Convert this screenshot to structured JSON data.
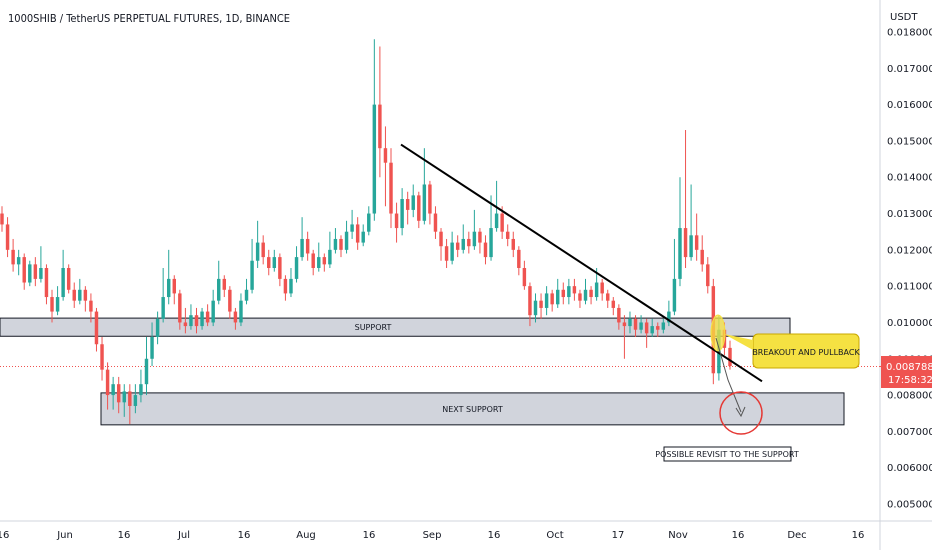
{
  "header": {
    "title": "1000SHIB / TetherUS PERPETUAL FUTURES, 1D, BINANCE"
  },
  "chart_data": {
    "type": "candlestick",
    "currency_label": "USDT",
    "ylim": [
      0.0045,
      0.0183
    ],
    "y_ticks": [
      "0.018000",
      "0.017000",
      "0.016000",
      "0.015000",
      "0.014000",
      "0.013000",
      "0.012000",
      "0.011000",
      "0.010000",
      "0.009000",
      "0.008000",
      "0.007000",
      "0.006000",
      "0.005000"
    ],
    "x_ticks": [
      "16",
      "Jun",
      "16",
      "Jul",
      "16",
      "Aug",
      "16",
      "Sep",
      "16",
      "Oct",
      "17",
      "Nov",
      "16",
      "Dec",
      "16"
    ],
    "last_price": "0.008788",
    "countdown": "17:58:32",
    "colors": {
      "up": "#26a69a",
      "down": "#ef5350",
      "zone_fill": "#d1d4dc",
      "zone_border": "#131722",
      "trendline": "#000000",
      "highlight": "#f5e142",
      "circle": "#e53935",
      "price_line": "#ef5350"
    },
    "zones": [
      {
        "label": "SUPPORT",
        "from": 0.00962,
        "to": 0.01012
      },
      {
        "label": "NEXT SUPPORT",
        "from": 0.00718,
        "to": 0.00806
      }
    ],
    "trendline": {
      "start": 0.0149,
      "end": 0.00838
    },
    "annotations": {
      "callout": "BREAKOUT AND PULLBACK",
      "note": "POSSIBLE REVISIT TO THE SUPPORT"
    },
    "candles": [
      [
        0.013,
        0.0127,
        0.0132,
        0.0125
      ],
      [
        0.0127,
        0.012,
        0.0129,
        0.0118
      ],
      [
        0.012,
        0.0116,
        0.0123,
        0.0114
      ],
      [
        0.0116,
        0.0118,
        0.012,
        0.0113
      ],
      [
        0.0118,
        0.0111,
        0.0119,
        0.0109
      ],
      [
        0.0111,
        0.0116,
        0.0117,
        0.011
      ],
      [
        0.0116,
        0.0112,
        0.0118,
        0.011
      ],
      [
        0.0112,
        0.0115,
        0.0121,
        0.0111
      ],
      [
        0.0115,
        0.0107,
        0.0116,
        0.0105
      ],
      [
        0.0107,
        0.0103,
        0.0109,
        0.01
      ],
      [
        0.0103,
        0.0107,
        0.011,
        0.0102
      ],
      [
        0.0107,
        0.0115,
        0.012,
        0.0106
      ],
      [
        0.0115,
        0.0109,
        0.0116,
        0.0108
      ],
      [
        0.0109,
        0.0106,
        0.0111,
        0.0104
      ],
      [
        0.0106,
        0.0109,
        0.0112,
        0.0105
      ],
      [
        0.0109,
        0.0106,
        0.011,
        0.0103
      ],
      [
        0.0106,
        0.0103,
        0.0108,
        0.01
      ],
      [
        0.0103,
        0.0094,
        0.0104,
        0.0092
      ],
      [
        0.0094,
        0.0087,
        0.0096,
        0.0084
      ],
      [
        0.0087,
        0.008,
        0.0089,
        0.0076
      ],
      [
        0.008,
        0.0083,
        0.0085,
        0.0076
      ],
      [
        0.0083,
        0.0078,
        0.0085,
        0.0075
      ],
      [
        0.0078,
        0.0081,
        0.0083,
        0.0074
      ],
      [
        0.0081,
        0.0077,
        0.0083,
        0.0072
      ],
      [
        0.0077,
        0.008,
        0.0083,
        0.0075
      ],
      [
        0.008,
        0.0083,
        0.0087,
        0.0078
      ],
      [
        0.0083,
        0.009,
        0.0096,
        0.008
      ],
      [
        0.009,
        0.0096,
        0.01,
        0.0088
      ],
      [
        0.0096,
        0.0101,
        0.0103,
        0.0094
      ],
      [
        0.0101,
        0.0107,
        0.0115,
        0.01
      ],
      [
        0.0107,
        0.0112,
        0.012,
        0.0105
      ],
      [
        0.0112,
        0.0108,
        0.0113,
        0.0105
      ],
      [
        0.0108,
        0.01,
        0.0109,
        0.0098
      ],
      [
        0.01,
        0.0099,
        0.0104,
        0.0097
      ],
      [
        0.0099,
        0.0102,
        0.0105,
        0.0098
      ],
      [
        0.0102,
        0.0099,
        0.0104,
        0.0097
      ],
      [
        0.0099,
        0.0103,
        0.0104,
        0.0098
      ],
      [
        0.0103,
        0.01,
        0.0105,
        0.0099
      ],
      [
        0.01,
        0.0106,
        0.0109,
        0.0099
      ],
      [
        0.0106,
        0.0112,
        0.0117,
        0.0105
      ],
      [
        0.0112,
        0.0109,
        0.0113,
        0.0107
      ],
      [
        0.0109,
        0.0103,
        0.011,
        0.0101
      ],
      [
        0.0103,
        0.01,
        0.0104,
        0.0098
      ],
      [
        0.01,
        0.0106,
        0.0108,
        0.0099
      ],
      [
        0.0106,
        0.0109,
        0.0112,
        0.0105
      ],
      [
        0.0109,
        0.0117,
        0.0123,
        0.0108
      ],
      [
        0.0117,
        0.0122,
        0.0128,
        0.0115
      ],
      [
        0.0122,
        0.0118,
        0.0124,
        0.0116
      ],
      [
        0.0118,
        0.0115,
        0.012,
        0.0113
      ],
      [
        0.0115,
        0.0118,
        0.012,
        0.0114
      ],
      [
        0.0118,
        0.0112,
        0.0119,
        0.011
      ],
      [
        0.0112,
        0.0108,
        0.0113,
        0.0106
      ],
      [
        0.0108,
        0.0112,
        0.0115,
        0.0107
      ],
      [
        0.0112,
        0.0118,
        0.0121,
        0.0111
      ],
      [
        0.0118,
        0.0123,
        0.0129,
        0.0117
      ],
      [
        0.0123,
        0.0119,
        0.0125,
        0.0117
      ],
      [
        0.0119,
        0.0115,
        0.012,
        0.0113
      ],
      [
        0.0115,
        0.0118,
        0.0122,
        0.0114
      ],
      [
        0.0118,
        0.0116,
        0.0119,
        0.0114
      ],
      [
        0.0116,
        0.012,
        0.0125,
        0.0115
      ],
      [
        0.012,
        0.0123,
        0.0126,
        0.0119
      ],
      [
        0.0123,
        0.012,
        0.0124,
        0.0118
      ],
      [
        0.012,
        0.0125,
        0.0128,
        0.0119
      ],
      [
        0.0125,
        0.0127,
        0.0131,
        0.0123
      ],
      [
        0.0127,
        0.0122,
        0.0129,
        0.012
      ],
      [
        0.0122,
        0.0125,
        0.0127,
        0.0121
      ],
      [
        0.0125,
        0.013,
        0.0132,
        0.0124
      ],
      [
        0.013,
        0.016,
        0.0178,
        0.0128
      ],
      [
        0.016,
        0.0148,
        0.0176,
        0.014
      ],
      [
        0.0148,
        0.0144,
        0.0154,
        0.0132
      ],
      [
        0.0144,
        0.013,
        0.0148,
        0.0126
      ],
      [
        0.013,
        0.0126,
        0.0133,
        0.0122
      ],
      [
        0.0126,
        0.0134,
        0.0137,
        0.0124
      ],
      [
        0.0134,
        0.0131,
        0.0136,
        0.0127
      ],
      [
        0.0131,
        0.0135,
        0.0138,
        0.0129
      ],
      [
        0.0135,
        0.0128,
        0.0136,
        0.0126
      ],
      [
        0.0128,
        0.0138,
        0.0148,
        0.0127
      ],
      [
        0.0138,
        0.013,
        0.0139,
        0.0127
      ],
      [
        0.013,
        0.0125,
        0.0132,
        0.0123
      ],
      [
        0.0125,
        0.0121,
        0.0126,
        0.0117
      ],
      [
        0.0121,
        0.0117,
        0.0123,
        0.0115
      ],
      [
        0.0117,
        0.0122,
        0.0125,
        0.0116
      ],
      [
        0.0122,
        0.012,
        0.0124,
        0.0118
      ],
      [
        0.012,
        0.0123,
        0.0127,
        0.0119
      ],
      [
        0.0123,
        0.0121,
        0.0125,
        0.0119
      ],
      [
        0.0121,
        0.0125,
        0.0131,
        0.012
      ],
      [
        0.0125,
        0.0122,
        0.0126,
        0.0119
      ],
      [
        0.0122,
        0.0118,
        0.0124,
        0.0116
      ],
      [
        0.0118,
        0.0126,
        0.0135,
        0.0117
      ],
      [
        0.0126,
        0.013,
        0.0139,
        0.0125
      ],
      [
        0.013,
        0.0125,
        0.0132,
        0.0123
      ],
      [
        0.0125,
        0.0123,
        0.0127,
        0.0121
      ],
      [
        0.0123,
        0.012,
        0.0125,
        0.0118
      ],
      [
        0.012,
        0.0115,
        0.0121,
        0.0113
      ],
      [
        0.0115,
        0.011,
        0.0117,
        0.0109
      ],
      [
        0.011,
        0.0102,
        0.0111,
        0.0099
      ],
      [
        0.0102,
        0.0106,
        0.0108,
        0.01
      ],
      [
        0.0106,
        0.0104,
        0.0108,
        0.0101
      ],
      [
        0.0104,
        0.0108,
        0.011,
        0.0102
      ],
      [
        0.0108,
        0.0105,
        0.0109,
        0.0103
      ],
      [
        0.0105,
        0.0109,
        0.0112,
        0.0104
      ],
      [
        0.0109,
        0.0107,
        0.0111,
        0.0105
      ],
      [
        0.0107,
        0.011,
        0.0112,
        0.0105
      ],
      [
        0.011,
        0.0108,
        0.0112,
        0.0106
      ],
      [
        0.0108,
        0.0106,
        0.0109,
        0.0104
      ],
      [
        0.0106,
        0.0109,
        0.0112,
        0.0105
      ],
      [
        0.0109,
        0.0107,
        0.011,
        0.0105
      ],
      [
        0.0107,
        0.0111,
        0.0115,
        0.0106
      ],
      [
        0.0111,
        0.0108,
        0.0112,
        0.0106
      ],
      [
        0.0108,
        0.0106,
        0.0109,
        0.0104
      ],
      [
        0.0106,
        0.0104,
        0.0107,
        0.0102
      ],
      [
        0.0104,
        0.01,
        0.0105,
        0.0098
      ],
      [
        0.01,
        0.0099,
        0.0102,
        0.009
      ],
      [
        0.0099,
        0.0101,
        0.0103,
        0.0097
      ],
      [
        0.0101,
        0.0098,
        0.0102,
        0.0096
      ],
      [
        0.0098,
        0.01,
        0.0102,
        0.0097
      ],
      [
        0.01,
        0.0097,
        0.0101,
        0.0093
      ],
      [
        0.0097,
        0.0099,
        0.0101,
        0.0096
      ],
      [
        0.0099,
        0.0098,
        0.01,
        0.0096
      ],
      [
        0.0098,
        0.01,
        0.0101,
        0.0097
      ],
      [
        0.01,
        0.0103,
        0.0106,
        0.0099
      ],
      [
        0.0103,
        0.0112,
        0.0123,
        0.0102
      ],
      [
        0.0112,
        0.0126,
        0.014,
        0.011
      ],
      [
        0.0126,
        0.0118,
        0.0153,
        0.0115
      ],
      [
        0.0118,
        0.0124,
        0.0138,
        0.0117
      ],
      [
        0.0124,
        0.012,
        0.013,
        0.0117
      ],
      [
        0.012,
        0.0116,
        0.0124,
        0.0114
      ],
      [
        0.0116,
        0.011,
        0.0118,
        0.0108
      ],
      [
        0.011,
        0.0086,
        0.0112,
        0.0083
      ],
      [
        0.0086,
        0.0098,
        0.0102,
        0.0084
      ],
      [
        0.0098,
        0.0093,
        0.01,
        0.0091
      ],
      [
        0.0093,
        0.0088,
        0.0095,
        0.0087
      ]
    ]
  }
}
